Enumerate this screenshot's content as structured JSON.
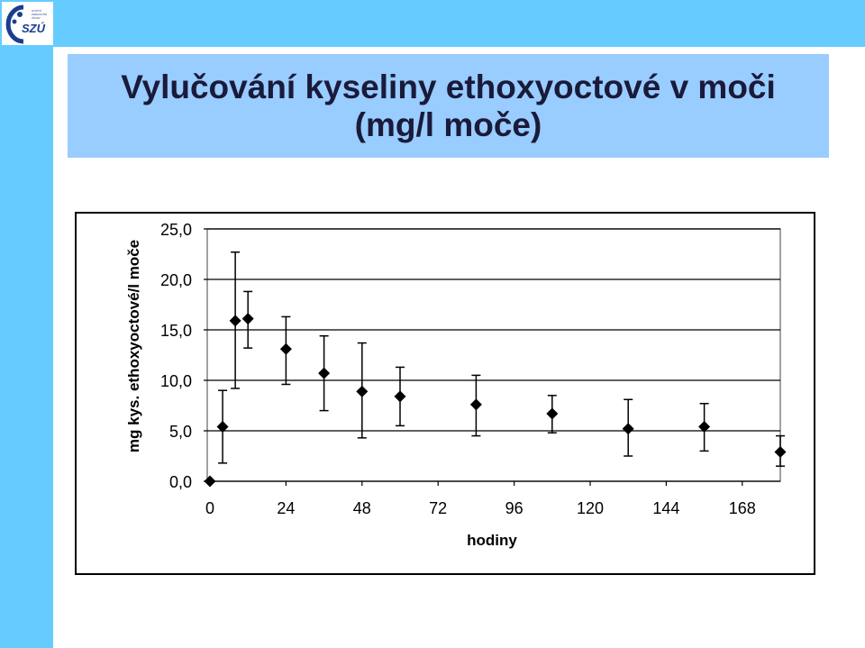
{
  "logo": {
    "text": "SZÚ",
    "small_text": "STÁTNÍ ZDRAVOTNÍ ÚSTAV",
    "icon": "szu-logo-icon"
  },
  "slide": {
    "title_line1": "Vylučování kyseliny ethoxyoctové v moči",
    "title_line2": "(mg/l moče)",
    "colors": {
      "band": "#66ccff",
      "title_box": "#99ccff"
    }
  },
  "chart_data": {
    "type": "scatter",
    "error_bars": true,
    "marker": "diamond",
    "xlabel": "hodiny",
    "ylabel": "mg kys. ethoxyoctové/l moče",
    "xlim": [
      0,
      180
    ],
    "ylim": [
      0,
      25
    ],
    "x_ticks": [
      "0",
      "24",
      "48",
      "72",
      "96",
      "120",
      "144",
      "168"
    ],
    "y_ticks": [
      "0,0",
      "5,0",
      "10,0",
      "15,0",
      "20,0",
      "25,0"
    ],
    "grid": "horizontal",
    "points": [
      {
        "x": 0,
        "y": 0.0,
        "err_low": 0.0,
        "err_high": 0.0
      },
      {
        "x": 4,
        "y": 5.4,
        "err_low": 3.6,
        "err_high": 3.6
      },
      {
        "x": 8,
        "y": 15.9,
        "err_low": 6.7,
        "err_high": 6.8
      },
      {
        "x": 12,
        "y": 16.1,
        "err_low": 2.9,
        "err_high": 2.7
      },
      {
        "x": 24,
        "y": 13.1,
        "err_low": 3.5,
        "err_high": 3.2
      },
      {
        "x": 36,
        "y": 10.7,
        "err_low": 3.7,
        "err_high": 3.7
      },
      {
        "x": 48,
        "y": 8.9,
        "err_low": 4.6,
        "err_high": 4.8
      },
      {
        "x": 60,
        "y": 8.4,
        "err_low": 2.9,
        "err_high": 2.9
      },
      {
        "x": 84,
        "y": 7.6,
        "err_low": 3.1,
        "err_high": 2.9
      },
      {
        "x": 108,
        "y": 6.7,
        "err_low": 1.9,
        "err_high": 1.8
      },
      {
        "x": 132,
        "y": 5.2,
        "err_low": 2.7,
        "err_high": 2.9
      },
      {
        "x": 156,
        "y": 5.4,
        "err_low": 2.4,
        "err_high": 2.3
      },
      {
        "x": 180,
        "y": 2.9,
        "err_low": 1.4,
        "err_high": 1.6
      }
    ]
  }
}
